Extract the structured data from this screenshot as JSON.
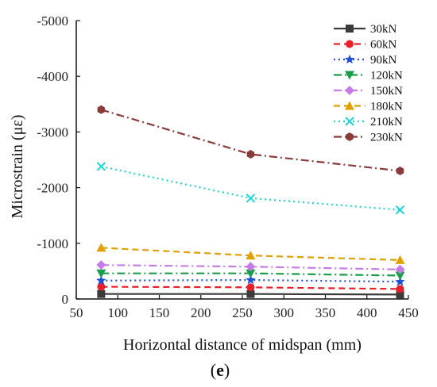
{
  "chart_data": {
    "type": "line",
    "xlabel": "Horizontal distance of midspan (mm)",
    "ylabel": "Microstrain (με)",
    "panel_label_open": "(",
    "panel_label": "e",
    "panel_label_close": ")",
    "xlim": [
      50,
      450
    ],
    "ylim": [
      0,
      -5000
    ],
    "xticks": [
      50,
      100,
      150,
      200,
      250,
      300,
      350,
      400,
      450
    ],
    "yticks": [
      0,
      -1000,
      -2000,
      -3000,
      -4000,
      -5000
    ],
    "x": [
      80,
      260,
      440
    ],
    "grid": false,
    "legend_position": "top-right",
    "series": [
      {
        "name": "30kN",
        "values": [
          -90,
          -90,
          -80
        ],
        "color": "#3b3b3b",
        "marker": "square",
        "dash": "solid"
      },
      {
        "name": "60kN",
        "values": [
          -220,
          -210,
          -180
        ],
        "color": "#e8202a",
        "marker": "circle",
        "dash": "dash"
      },
      {
        "name": "90kN",
        "values": [
          -330,
          -340,
          -310
        ],
        "color": "#1d4fd8",
        "marker": "star",
        "dash": "dot"
      },
      {
        "name": "120kN",
        "values": [
          -460,
          -460,
          -420
        ],
        "color": "#1a9e4a",
        "marker": "tri-down",
        "dash": "dashdot"
      },
      {
        "name": "150kN",
        "values": [
          -610,
          -580,
          -530
        ],
        "color": "#c77be6",
        "marker": "diamond",
        "dash": "dashdot"
      },
      {
        "name": "180kN",
        "values": [
          -920,
          -780,
          -700
        ],
        "color": "#e0a100",
        "marker": "tri-up",
        "dash": "dash"
      },
      {
        "name": "210kN",
        "values": [
          -2380,
          -1810,
          -1600
        ],
        "color": "#1fd4d4",
        "marker": "x",
        "dash": "dot"
      },
      {
        "name": "230kN",
        "values": [
          -3400,
          -2600,
          -2300
        ],
        "color": "#8b3a3a",
        "marker": "hexagon",
        "dash": "dashdot"
      }
    ]
  }
}
